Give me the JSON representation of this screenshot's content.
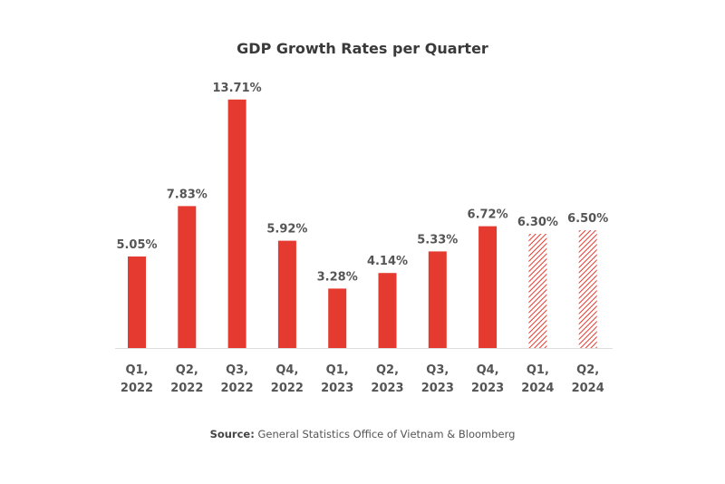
{
  "chart_data": {
    "type": "bar",
    "title": "GDP Growth Rates per Quarter",
    "categories": [
      [
        "Q1,",
        "2022"
      ],
      [
        "Q2,",
        "2022"
      ],
      [
        "Q3,",
        "2022"
      ],
      [
        "Q4,",
        "2022"
      ],
      [
        "Q1,",
        "2023"
      ],
      [
        "Q2,",
        "2023"
      ],
      [
        "Q3,",
        "2023"
      ],
      [
        "Q4,",
        "2023"
      ],
      [
        "Q1,",
        "2024"
      ],
      [
        "Q2,",
        "2024"
      ]
    ],
    "values": [
      5.05,
      7.83,
      13.71,
      5.92,
      3.28,
      4.14,
      5.33,
      6.72,
      6.3,
      6.5
    ],
    "labels": [
      "5.05%",
      "7.83%",
      "13.71%",
      "5.92%",
      "3.28%",
      "4.14%",
      "5.33%",
      "6.72%",
      "6.30%",
      "6.50%"
    ],
    "forecast": [
      false,
      false,
      false,
      false,
      false,
      false,
      false,
      false,
      true,
      true
    ],
    "xlabel": "",
    "ylabel": "",
    "ylim": [
      0,
      14
    ],
    "grid": false,
    "colors": {
      "bar": "#e53a2f",
      "forecast": "#e53a2f",
      "label": "#555555",
      "axis": "#dddddd"
    }
  },
  "source": {
    "label": "Source:",
    "text": " General Statistics Office of Vietnam & Bloomberg"
  }
}
